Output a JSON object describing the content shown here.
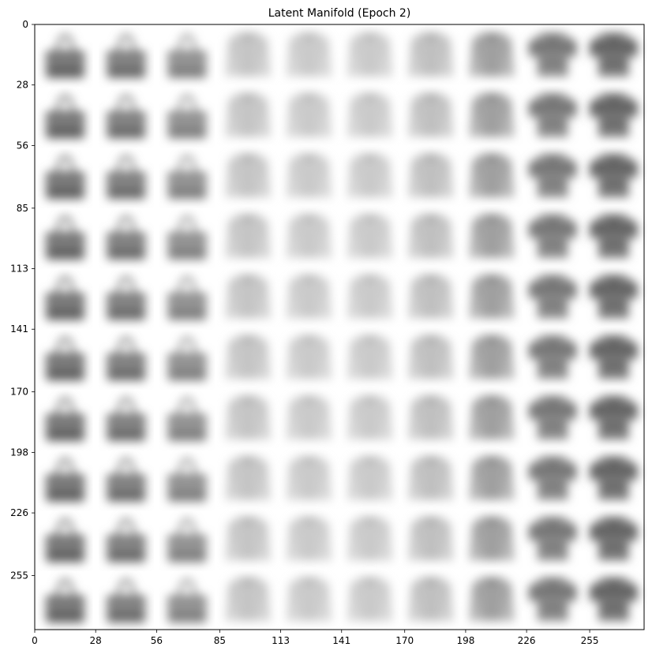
{
  "chart_data": {
    "type": "heatmap",
    "title": "Latent Manifold (Epoch 2)",
    "xlabel": "",
    "ylabel": "",
    "x_ticks": [
      "0",
      "28",
      "56",
      "85",
      "113",
      "141",
      "170",
      "198",
      "226",
      "255"
    ],
    "y_ticks": [
      "0",
      "28",
      "56",
      "85",
      "113",
      "141",
      "170",
      "198",
      "226",
      "255"
    ],
    "xlim": [
      0,
      280
    ],
    "ylim": [
      280,
      0
    ],
    "grid": false,
    "colormap": "gray_r",
    "grid_rows": 10,
    "grid_cols": 10,
    "cell_size": 28,
    "column_items": [
      "bag",
      "bag",
      "bag",
      "shirt",
      "shirt",
      "shirt",
      "shirt",
      "shirt",
      "tshirt",
      "tshirt"
    ],
    "column_darkness": [
      0.62,
      0.58,
      0.5,
      0.22,
      0.2,
      0.2,
      0.24,
      0.36,
      0.58,
      0.66
    ]
  }
}
